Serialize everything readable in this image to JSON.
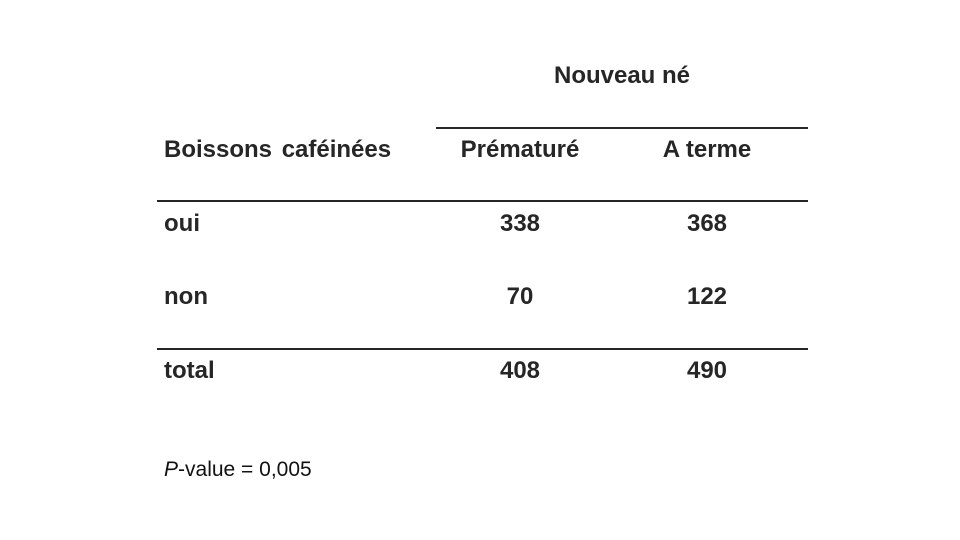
{
  "table": {
    "group_header": "Nouveau né",
    "row_header": "Boissons caféinées",
    "columns": [
      "Prématuré",
      "A terme"
    ],
    "rows": [
      {
        "label": "oui",
        "values": [
          "338",
          "368"
        ]
      },
      {
        "label": "non",
        "values": [
          "70",
          "122"
        ]
      }
    ],
    "total": {
      "label": "total",
      "values": [
        "408",
        "490"
      ]
    }
  },
  "footnote": {
    "italic": "P",
    "rest": "-value = 0,005"
  },
  "colors": {
    "text": "#262626",
    "rule": "#262626",
    "background": "#ffffff"
  }
}
